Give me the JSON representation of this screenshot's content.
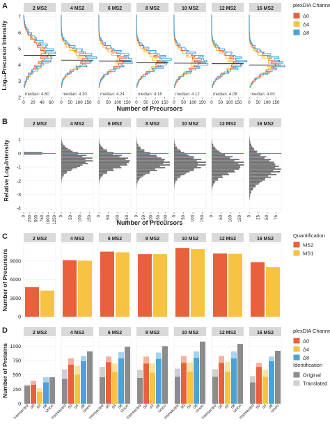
{
  "chart_data": [
    {
      "panel": "A",
      "type": "histogram",
      "facets": [
        "2 MS2",
        "4 MS2",
        "6 MS2",
        "8 MS2",
        "10 MS2",
        "12 MS2",
        "16 MS2"
      ],
      "xlabel": "Number of Precursors",
      "ylabel": "Log₁₀Precursor Intensity",
      "ylim": [
        2,
        7.2
      ],
      "yticks": [
        "2",
        "3",
        "4",
        "5",
        "6",
        "7"
      ],
      "facet_xticks": [
        [
          "0",
          "20",
          "40",
          "60"
        ],
        [
          "0",
          "50",
          "100",
          "150"
        ],
        [
          "0",
          "50",
          "100",
          "150"
        ],
        [
          "0",
          "50",
          "100",
          "150"
        ],
        [
          "0",
          "50",
          "100",
          "150"
        ],
        [
          "0",
          "50",
          "100",
          "150"
        ],
        [
          "0",
          "50",
          "100",
          "150"
        ]
      ],
      "facet_xmax": [
        70,
        180,
        170,
        170,
        170,
        180,
        180
      ],
      "medians": [
        4.6,
        4.3,
        4.24,
        4.16,
        4.12,
        4.08,
        4.0
      ],
      "median_labels": [
        "median: 4.60",
        "median: 4.30",
        "median: 4.24",
        "median: 4.16",
        "median: 4.12",
        "median: 4.08",
        "median: 4.00"
      ],
      "peak_counts": {
        "Δ0": [
          45,
          140,
          130,
          130,
          130,
          140,
          150
        ],
        "Δ4": [
          55,
          120,
          110,
          110,
          110,
          120,
          125
        ],
        "Δ8": [
          60,
          170,
          160,
          160,
          160,
          170,
          175
        ]
      },
      "sd": [
        0.75,
        0.55,
        0.55,
        0.55,
        0.55,
        0.55,
        0.55
      ],
      "series": [
        {
          "name": "Δ0",
          "color": "#E8603C"
        },
        {
          "name": "Δ4",
          "color": "#F6C342"
        },
        {
          "name": "Δ8",
          "color": "#4AA3D8"
        }
      ]
    },
    {
      "panel": "B",
      "type": "histogram",
      "facets": [
        "2 MS2",
        "4 MS2",
        "6 MS2",
        "8 MS2",
        "10 MS2",
        "12 MS2",
        "16 MS2"
      ],
      "xlabel": "Number of Precursors",
      "ylabel": "Relative Log₂Intensity",
      "ylim": [
        -4.3,
        1.8
      ],
      "yticks": [
        "-4",
        "-3",
        "-2",
        "-1",
        "0",
        "1"
      ],
      "facet_xticks": [
        [
          "0",
          "250",
          "500",
          "750",
          "1000",
          "1250"
        ],
        [
          "0",
          "50",
          "100",
          "150"
        ],
        [
          "0",
          "50",
          "100",
          "150"
        ],
        [
          "0",
          "50",
          "100",
          "150",
          "200"
        ],
        [
          "0",
          "50",
          "100",
          "150"
        ],
        [
          "0",
          "50",
          "100",
          "150"
        ],
        [
          "0",
          "25",
          "50",
          "75"
        ]
      ],
      "facet_xmax": [
        1300,
        170,
        170,
        220,
        170,
        170,
        90
      ],
      "peak_counts": [
        1250,
        150,
        160,
        210,
        150,
        160,
        80
      ],
      "center": [
        0,
        -0.5,
        -0.6,
        -0.7,
        -0.75,
        -0.85,
        -1.1
      ],
      "sd": [
        0.05,
        0.5,
        0.5,
        0.55,
        0.55,
        0.6,
        0.75
      ],
      "bar_color": "#6E6E6E",
      "ref_line_color": "#E8603C"
    },
    {
      "panel": "C",
      "type": "bar",
      "facets": [
        "2 MS2",
        "4 MS2",
        "6 MS2",
        "8 MS2",
        "10 MS2",
        "12 MS2",
        "16 MS2"
      ],
      "ylabel": "Number of Precursors",
      "ylim": [
        0,
        11800
      ],
      "yticks": [
        "0",
        "3000",
        "6000",
        "9000"
      ],
      "series": [
        {
          "name": "MS2",
          "color": "#E8603C",
          "values": [
            4800,
            9100,
            10500,
            10100,
            11100,
            10200,
            8800
          ]
        },
        {
          "name": "MS1",
          "color": "#F6C342",
          "values": [
            4200,
            9050,
            10400,
            10100,
            10900,
            10150,
            8000
          ]
        }
      ],
      "legend_title": "Quantification"
    },
    {
      "panel": "D",
      "type": "bar",
      "facets": [
        "2 MS2",
        "4 MS2",
        "6 MS2",
        "8 MS2",
        "10 MS2",
        "12 MS2",
        "16 MS2"
      ],
      "ylabel": "Number of Proteins",
      "ylim": [
        0,
        1150
      ],
      "yticks": [
        "0",
        "250",
        "500",
        "750",
        "1000"
      ],
      "categories": [
        "Intersected",
        "d0",
        "d4",
        "d8",
        "Union"
      ],
      "original": [
        [
          310,
          330,
          210,
          370,
          460
        ],
        [
          430,
          680,
          510,
          740,
          910
        ],
        [
          460,
          720,
          550,
          790,
          990
        ],
        [
          450,
          700,
          540,
          780,
          1000
        ],
        [
          470,
          710,
          560,
          800,
          1080
        ],
        [
          470,
          710,
          560,
          790,
          1040
        ],
        [
          370,
          640,
          470,
          740,
          920
        ]
      ],
      "translated": [
        [
          20,
          70,
          60,
          90,
          0
        ],
        [
          170,
          110,
          150,
          90,
          0
        ],
        [
          180,
          100,
          150,
          110,
          0
        ],
        [
          140,
          120,
          160,
          110,
          0
        ],
        [
          140,
          120,
          160,
          110,
          0
        ],
        [
          130,
          120,
          170,
          120,
          0
        ],
        [
          110,
          70,
          120,
          80,
          0
        ]
      ],
      "category_colors": [
        "#8C8C8C",
        "#E8603C",
        "#F6C342",
        "#4AA3D8",
        "#8C8C8C"
      ],
      "legend_channel_title": "plexDIA Channel",
      "legend_channel": [
        {
          "name": "Δ0",
          "color": "#E8603C"
        },
        {
          "name": "Δ4",
          "color": "#F6C342"
        },
        {
          "name": "Δ8",
          "color": "#4AA3D8"
        }
      ],
      "legend_id_title": "Identification",
      "legend_id": [
        {
          "name": "Original",
          "color": "#8C8C8C"
        },
        {
          "name": "Translated",
          "color": "#CFCFCF"
        }
      ]
    }
  ],
  "panel_labels": [
    "A",
    "B",
    "C",
    "D"
  ],
  "legend_A": {
    "title": "plexDIA Channel",
    "items": [
      {
        "name": "Δ0",
        "color": "#E8603C"
      },
      {
        "name": "Δ4",
        "color": "#F6C342"
      },
      {
        "name": "Δ8",
        "color": "#4AA3D8"
      }
    ]
  },
  "legend_C": {
    "title": "Quantification",
    "items": [
      {
        "name": "MS2",
        "color": "#E8603C"
      },
      {
        "name": "MS1",
        "color": "#F6C342"
      }
    ]
  }
}
